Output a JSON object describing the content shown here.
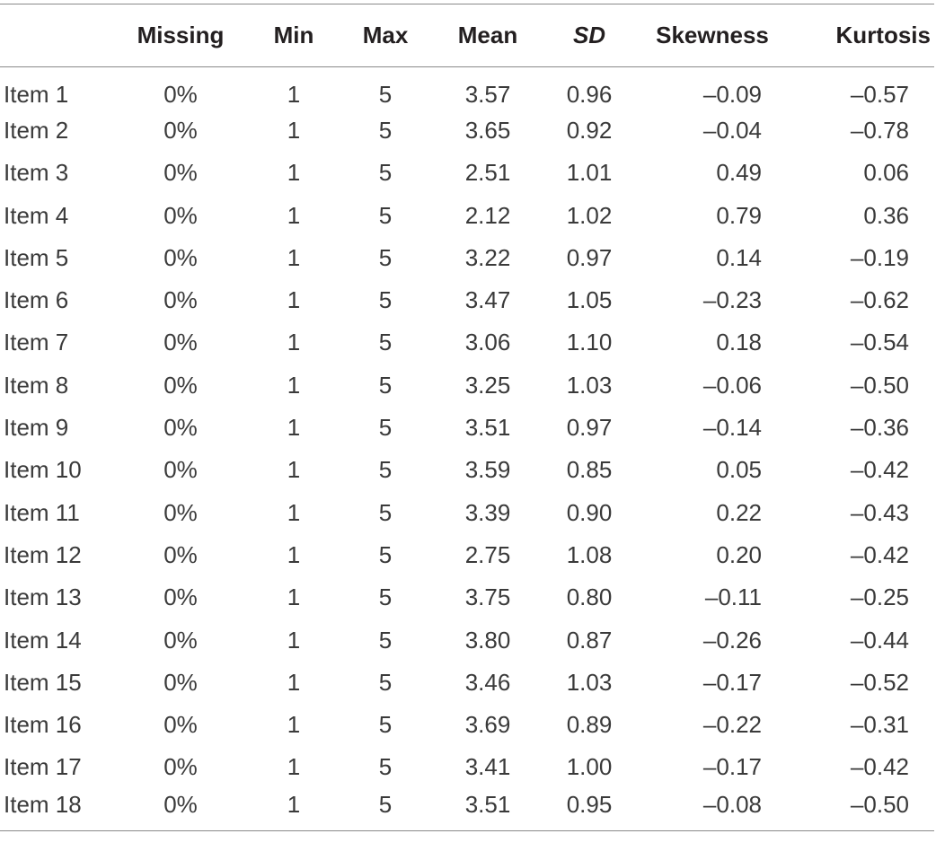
{
  "table": {
    "headers": [
      "",
      "Missing",
      "Min",
      "Max",
      "Mean",
      "SD",
      "Skewness",
      "Kurtosis"
    ],
    "rows": [
      [
        "Item 1",
        "0%",
        "1",
        "5",
        "3.57",
        "0.96",
        "–0.09",
        "–0.57"
      ],
      [
        "Item 2",
        "0%",
        "1",
        "5",
        "3.65",
        "0.92",
        "–0.04",
        "–0.78"
      ],
      [
        "Item 3",
        "0%",
        "1",
        "5",
        "2.51",
        "1.01",
        "0.49",
        "0.06"
      ],
      [
        "Item 4",
        "0%",
        "1",
        "5",
        "2.12",
        "1.02",
        "0.79",
        "0.36"
      ],
      [
        "Item 5",
        "0%",
        "1",
        "5",
        "3.22",
        "0.97",
        "0.14",
        "–0.19"
      ],
      [
        "Item 6",
        "0%",
        "1",
        "5",
        "3.47",
        "1.05",
        "–0.23",
        "–0.62"
      ],
      [
        "Item 7",
        "0%",
        "1",
        "5",
        "3.06",
        "1.10",
        "0.18",
        "–0.54"
      ],
      [
        "Item 8",
        "0%",
        "1",
        "5",
        "3.25",
        "1.03",
        "–0.06",
        "–0.50"
      ],
      [
        "Item 9",
        "0%",
        "1",
        "5",
        "3.51",
        "0.97",
        "–0.14",
        "–0.36"
      ],
      [
        "Item 10",
        "0%",
        "1",
        "5",
        "3.59",
        "0.85",
        "0.05",
        "–0.42"
      ],
      [
        "Item 11",
        "0%",
        "1",
        "5",
        "3.39",
        "0.90",
        "0.22",
        "–0.43"
      ],
      [
        "Item 12",
        "0%",
        "1",
        "5",
        "2.75",
        "1.08",
        "0.20",
        "–0.42"
      ],
      [
        "Item 13",
        "0%",
        "1",
        "5",
        "3.75",
        "0.80",
        "–0.11",
        "–0.25"
      ],
      [
        "Item 14",
        "0%",
        "1",
        "5",
        "3.80",
        "0.87",
        "–0.26",
        "–0.44"
      ],
      [
        "Item 15",
        "0%",
        "1",
        "5",
        "3.46",
        "1.03",
        "–0.17",
        "–0.52"
      ],
      [
        "Item 16",
        "0%",
        "1",
        "5",
        "3.69",
        "0.89",
        "–0.22",
        "–0.31"
      ],
      [
        "Item 17",
        "0%",
        "1",
        "5",
        "3.41",
        "1.00",
        "–0.17",
        "–0.42"
      ],
      [
        "Item 18",
        "0%",
        "1",
        "5",
        "3.51",
        "0.95",
        "–0.08",
        "–0.50"
      ]
    ]
  }
}
